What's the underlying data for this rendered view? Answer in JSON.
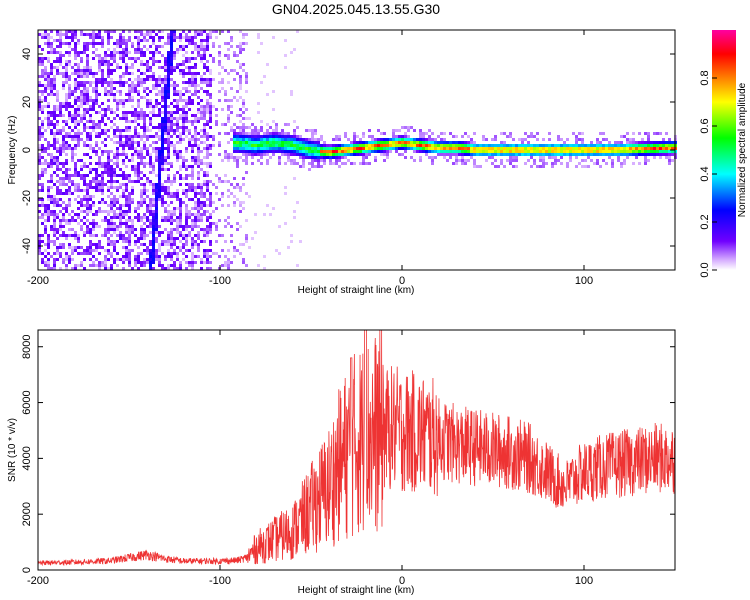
{
  "figure": {
    "title": "GN04.2025.045.13.55.G30"
  },
  "chart_data": [
    {
      "type": "heatmap",
      "title": "GN04.2025.045.13.55.G30",
      "xlabel": "Height of straight line (km)",
      "ylabel": "Frequency (Hz)",
      "xlim": [
        -200,
        150
      ],
      "ylim": [
        -50,
        50
      ],
      "x_ticks": [
        -200,
        -100,
        0,
        100
      ],
      "y_ticks": [
        -40,
        -20,
        0,
        20,
        40
      ],
      "colorbar": {
        "label": "Normalized spectral amplitude",
        "range": [
          0,
          1
        ],
        "ticks": [
          "0.0",
          "0.2",
          "0.4",
          "0.6",
          "0.8"
        ],
        "colors": [
          "#ffffff",
          "#d0a0ff",
          "#7000ff",
          "#0000ff",
          "#00ffff",
          "#00ff00",
          "#ffff00",
          "#ff8000",
          "#ff0000",
          "#ff00a0"
        ]
      },
      "features": {
        "noise_region_x": [
          -200,
          -85
        ],
        "diagonal_streak": {
          "x": [
            -138,
            -126
          ],
          "y": [
            -50,
            50
          ]
        },
        "carrier_trace": {
          "x": [
            -92,
            -80,
            -70,
            -60,
            -50,
            -40,
            -30,
            -20,
            -10,
            0,
            10,
            20,
            30,
            40,
            60,
            80,
            100,
            120,
            150
          ],
          "y": [
            3,
            2,
            3,
            2,
            0,
            -1,
            0,
            1,
            2,
            3,
            2,
            1,
            1,
            0,
            0,
            0,
            0,
            0,
            1
          ]
        }
      }
    },
    {
      "type": "line",
      "xlabel": "Height of straight line (km)",
      "ylabel": "SNR (10 * v/v)",
      "xlim": [
        -200,
        150
      ],
      "ylim": [
        0,
        8600
      ],
      "x_ticks": [
        -200,
        -100,
        0,
        100
      ],
      "y_ticks": [
        0,
        2000,
        4000,
        6000,
        8000
      ],
      "color": "#ee3333",
      "series": [
        {
          "x": [
            -200,
            -180,
            -160,
            -140,
            -130,
            -120,
            -100,
            -90,
            -85,
            -80,
            -70,
            -60,
            -50,
            -40,
            -35,
            -30,
            -25,
            -20,
            -15,
            -10,
            -5,
            0,
            10,
            20,
            30,
            40,
            50,
            60,
            70,
            80,
            85,
            90,
            95,
            100,
            110,
            120,
            130,
            140,
            150
          ],
          "values": [
            250,
            280,
            330,
            550,
            400,
            320,
            320,
            350,
            450,
            800,
            1100,
            1400,
            2200,
            3000,
            3700,
            4200,
            4600,
            4800,
            4900,
            5000,
            5100,
            5000,
            4900,
            4700,
            4500,
            4400,
            4300,
            4200,
            4000,
            3500,
            3200,
            3000,
            3300,
            3500,
            3700,
            3800,
            3900,
            4000,
            4000
          ]
        }
      ]
    }
  ]
}
